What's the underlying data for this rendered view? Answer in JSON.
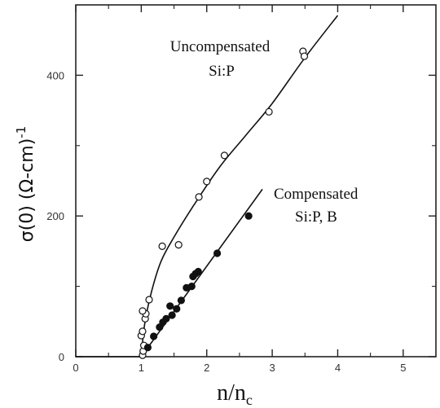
{
  "chart_data": {
    "type": "scatter",
    "xlabel": "n/n_c",
    "xlabel_main": "n/n",
    "xlabel_sub": "c",
    "ylabel": "σ(0) (Ω-cm)⁻¹",
    "ylabel_main": "σ(0) (Ω-cm)",
    "ylabel_sup": "-1",
    "xlim": [
      0,
      5.5
    ],
    "ylim": [
      0,
      500
    ],
    "xticks": [
      "0",
      "1",
      "2",
      "3",
      "4",
      "5"
    ],
    "yticks": [
      "0",
      "200",
      "400"
    ],
    "grid": false,
    "series": [
      {
        "name": "Uncompensated Si:P",
        "marker": "open-circle",
        "color": "#111111",
        "points": [
          {
            "x": 1.02,
            "y": 2
          },
          {
            "x": 1.03,
            "y": 8
          },
          {
            "x": 1.04,
            "y": 16
          },
          {
            "x": 1.0,
            "y": 30
          },
          {
            "x": 1.02,
            "y": 36
          },
          {
            "x": 1.06,
            "y": 54
          },
          {
            "x": 1.07,
            "y": 61
          },
          {
            "x": 1.02,
            "y": 65
          },
          {
            "x": 1.12,
            "y": 81
          },
          {
            "x": 1.32,
            "y": 157
          },
          {
            "x": 1.57,
            "y": 159
          },
          {
            "x": 1.88,
            "y": 227
          },
          {
            "x": 2.0,
            "y": 249
          },
          {
            "x": 2.27,
            "y": 286
          },
          {
            "x": 2.95,
            "y": 348
          },
          {
            "x": 3.47,
            "y": 434
          },
          {
            "x": 3.49,
            "y": 427
          }
        ],
        "fit": [
          {
            "x": 1.0,
            "y": 0
          },
          {
            "x": 1.05,
            "y": 45
          },
          {
            "x": 1.15,
            "y": 90
          },
          {
            "x": 1.3,
            "y": 135
          },
          {
            "x": 1.5,
            "y": 170
          },
          {
            "x": 1.8,
            "y": 215
          },
          {
            "x": 2.2,
            "y": 270
          },
          {
            "x": 2.6,
            "y": 315
          },
          {
            "x": 3.0,
            "y": 360
          },
          {
            "x": 3.5,
            "y": 425
          },
          {
            "x": 4.0,
            "y": 485
          }
        ]
      },
      {
        "name": "Compensated Si:P, B",
        "marker": "filled-circle",
        "color": "#111111",
        "points": [
          {
            "x": 1.1,
            "y": 13
          },
          {
            "x": 1.19,
            "y": 29
          },
          {
            "x": 1.28,
            "y": 42
          },
          {
            "x": 1.33,
            "y": 49
          },
          {
            "x": 1.38,
            "y": 54
          },
          {
            "x": 1.44,
            "y": 72
          },
          {
            "x": 1.47,
            "y": 59
          },
          {
            "x": 1.54,
            "y": 68
          },
          {
            "x": 1.61,
            "y": 80
          },
          {
            "x": 1.69,
            "y": 98
          },
          {
            "x": 1.77,
            "y": 100
          },
          {
            "x": 1.79,
            "y": 114
          },
          {
            "x": 1.83,
            "y": 118
          },
          {
            "x": 1.87,
            "y": 121
          },
          {
            "x": 2.16,
            "y": 147
          },
          {
            "x": 2.64,
            "y": 200
          }
        ],
        "fit": [
          {
            "x": 1.0,
            "y": 0
          },
          {
            "x": 2.85,
            "y": 238
          }
        ]
      }
    ],
    "annotations": [
      {
        "lines": [
          "Uncompensated",
          "Si:P"
        ],
        "series": 0,
        "anchor": "top-center"
      },
      {
        "lines": [
          "Compensated",
          "Si:P, B"
        ],
        "series": 1,
        "anchor": "middle-right"
      }
    ]
  }
}
